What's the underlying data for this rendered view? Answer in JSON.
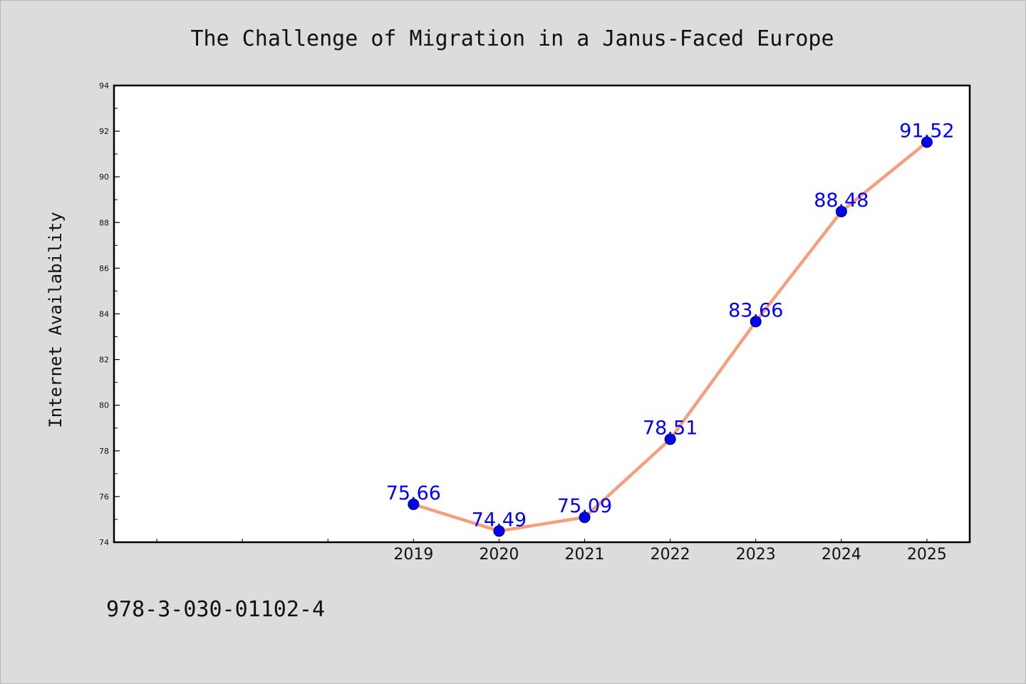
{
  "chart_data": {
    "type": "line",
    "title": "The Challenge of Migration in a Janus-Faced Europe",
    "xlabel": "",
    "ylabel": "Internet Availability",
    "footer_text": "978-3-030-01102-4",
    "x": [
      2019,
      2020,
      2021,
      2022,
      2023,
      2024,
      2025
    ],
    "x_tick_labels": [
      "2019",
      "2020",
      "2021",
      "2022",
      "2023",
      "2024",
      "2025"
    ],
    "xlim": [
      2015.5,
      2025.5
    ],
    "ylim": [
      74,
      94
    ],
    "y_ticks": [
      74,
      76,
      78,
      80,
      82,
      84,
      86,
      88,
      90,
      92,
      94
    ],
    "series": [
      {
        "values": [
          75.66,
          74.49,
          75.09,
          78.51,
          83.66,
          88.48,
          91.52
        ],
        "data_labels": [
          "75.66",
          "74.49",
          "75.09",
          "78.51",
          "83.66",
          "88.48",
          "91.52"
        ]
      }
    ],
    "grid": false,
    "legend": "none",
    "colors": {
      "page_background": "#dcdcdc",
      "plot_background": "#ffffff",
      "line": "#f4a07f",
      "marker": "#0000ff",
      "data_label": "#0000ff",
      "text": "#111111"
    }
  }
}
